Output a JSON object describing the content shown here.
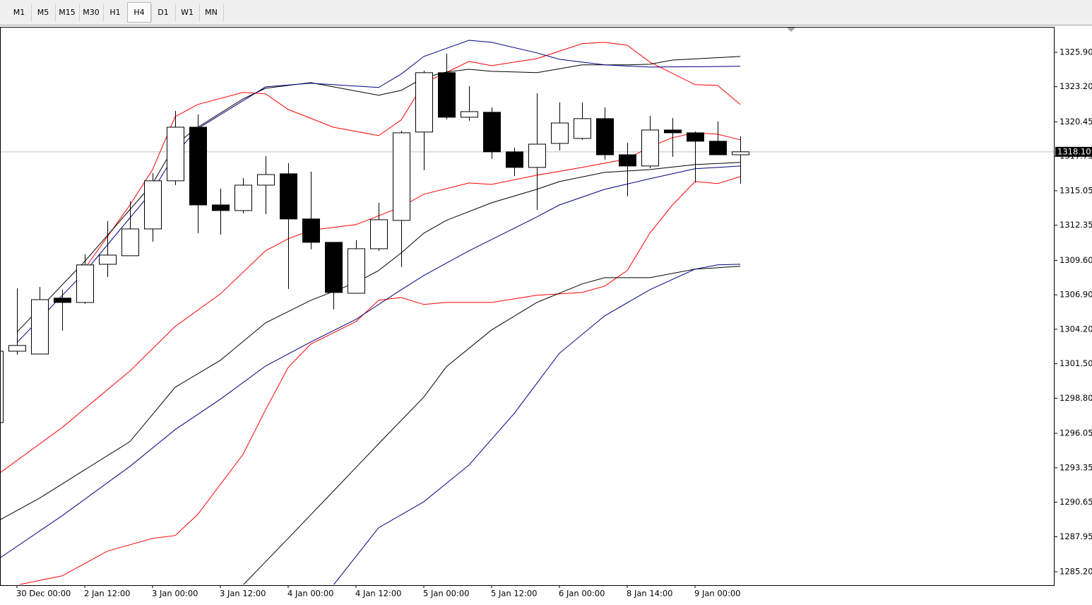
{
  "toolbar": {
    "timeframes": [
      "M1",
      "M5",
      "M15",
      "M30",
      "H1",
      "H4",
      "D1",
      "W1",
      "MN"
    ],
    "active": "H4"
  },
  "chart_data": {
    "type": "candlestick",
    "categories": [
      null,
      "30 Dec 00:00",
      null,
      null,
      "2 Jan 12:00",
      null,
      null,
      "3 Jan 00:00",
      null,
      null,
      "3 Jan 12:00",
      null,
      null,
      "4 Jan 00:00",
      null,
      null,
      "4 Jan 12:00",
      null,
      null,
      "5 Jan 00:00",
      null,
      null,
      "5 Jan 12:00",
      null,
      null,
      "6 Jan 00:00",
      null,
      null,
      "8 Jan 14:00",
      null,
      null,
      "9 Jan 00:00",
      null,
      null
    ],
    "open": [
      1296.89,
      1302.48,
      1302.26,
      1306.64,
      1306.3,
      1309.29,
      1309.96,
      1312.06,
      1315.83,
      1320.03,
      1313.94,
      1313.5,
      1315.49,
      1316.38,
      1312.84,
      1311.01,
      1307.02,
      1310.51,
      1312.73,
      1319.65,
      1324.3,
      1320.81,
      1321.2,
      1318.1,
      1316.88,
      1318.76,
      1319.15,
      1320.7,
      1317.87,
      1316.99,
      1319.81,
      1319.59,
      1318.93,
      1317.87
    ],
    "high": [
      1302.87,
      1307.41,
      1307.52,
      1307.3,
      1310.07,
      1312.67,
      1314.22,
      1316.43,
      1321.31,
      1321.03,
      1315.22,
      1316.05,
      1317.76,
      1317.21,
      1316.55,
      1311.01,
      1311.18,
      1314.11,
      1319.76,
      1324.46,
      1325.79,
      1323.24,
      1321.58,
      1318.43,
      1322.69,
      1321.97,
      1321.97,
      1321.58,
      1318.81,
      1320.92,
      1320.75,
      1319.7,
      1320.48,
      1319.31
    ],
    "low": [
      1296.89,
      1302.21,
      1302.26,
      1304.09,
      1306.19,
      1308.3,
      1309.96,
      1311.06,
      1315.49,
      1311.73,
      1311.62,
      1313.28,
      1313.22,
      1307.36,
      1310.46,
      1305.75,
      1307.02,
      1310.34,
      1309.07,
      1316.66,
      1320.64,
      1320.53,
      1317.54,
      1316.21,
      1313.56,
      1318.21,
      1319.04,
      1317.49,
      1314.61,
      1316.82,
      1317.71,
      1315.71,
      1317.87,
      1315.6
    ],
    "close": [
      1302.48,
      1302.93,
      1306.52,
      1306.3,
      1309.24,
      1310.01,
      1312.06,
      1315.83,
      1320.03,
      1313.94,
      1313.5,
      1315.49,
      1316.32,
      1312.84,
      1311.01,
      1307.08,
      1310.51,
      1312.78,
      1319.59,
      1324.3,
      1320.81,
      1321.25,
      1318.1,
      1316.88,
      1318.7,
      1320.36,
      1320.7,
      1317.87,
      1316.99,
      1319.81,
      1319.59,
      1318.93,
      1317.87,
      1318.1
    ],
    "up_color": "#ffffff",
    "down_color": "#000000",
    "outline_color": "#000000",
    "series": [
      {
        "color": "#ff0000",
        "x": [
          4,
          5,
          6,
          7,
          8,
          9,
          11,
          12,
          13,
          15,
          17,
          18,
          19,
          21,
          22,
          24,
          26,
          27,
          28,
          29,
          31,
          32,
          33
        ],
        "values": [
          1308.96,
          1311.45,
          1313.94,
          1316.71,
          1320.86,
          1321.81,
          1322.75,
          1322.64,
          1321.42,
          1320.03,
          1319.37,
          1320.59,
          1323.47,
          1325.18,
          1324.85,
          1325.4,
          1326.57,
          1326.68,
          1326.45,
          1325.13,
          1323.36,
          1323.3,
          1321.81
        ]
      },
      {
        "color": "#ff0000",
        "x": [
          0,
          3,
          6,
          8,
          10,
          12,
          13,
          14,
          16,
          18,
          19,
          21,
          22,
          24,
          26,
          28,
          29,
          30,
          31,
          32,
          33
        ],
        "values": [
          1292.63,
          1296.51,
          1300.94,
          1304.42,
          1306.97,
          1310.35,
          1311.29,
          1311.95,
          1312.4,
          1313.78,
          1314.78,
          1315.66,
          1315.55,
          1316.27,
          1316.88,
          1317.54,
          1318.49,
          1319.21,
          1319.59,
          1319.48,
          1319.04
        ]
      },
      {
        "color": "#ff0000",
        "x": [
          1,
          3,
          5,
          7,
          8,
          9,
          11,
          12,
          13,
          14,
          16,
          17,
          18,
          19,
          20,
          22,
          24,
          26,
          27,
          28,
          29,
          30,
          31,
          32,
          33
        ],
        "values": [
          1284.16,
          1284.88,
          1286.82,
          1287.82,
          1288.04,
          1289.7,
          1294.4,
          1297.89,
          1301.21,
          1303.04,
          1304.81,
          1306.47,
          1306.69,
          1306.14,
          1306.3,
          1306.3,
          1306.86,
          1307.08,
          1307.58,
          1308.8,
          1311.73,
          1313.94,
          1315.77,
          1315.61,
          1316.16
        ]
      },
      {
        "color": "#000000",
        "x": [
          1,
          4,
          7,
          8,
          9,
          11,
          12,
          14,
          17,
          18,
          19,
          20,
          21,
          22,
          24,
          26,
          28,
          29,
          30,
          33
        ],
        "values": [
          1303.98,
          1309.52,
          1315.61,
          1318.65,
          1320.03,
          1322.25,
          1323.08,
          1323.52,
          1322.53,
          1322.91,
          1323.91,
          1324.35,
          1324.57,
          1324.41,
          1324.3,
          1324.91,
          1324.91,
          1324.96,
          1325.29,
          1325.57
        ]
      },
      {
        "color": "#000080",
        "x": [
          1,
          4,
          7,
          8,
          9,
          12,
          14,
          17,
          18,
          19,
          21,
          22,
          24,
          25,
          27,
          29,
          33
        ],
        "values": [
          1303.15,
          1308.69,
          1315.05,
          1317.93,
          1319.92,
          1323.19,
          1323.47,
          1323.14,
          1324.19,
          1325.57,
          1326.84,
          1326.68,
          1325.85,
          1325.35,
          1324.91,
          1324.74,
          1324.8
        ]
      },
      {
        "color": "#000000",
        "x": [
          0,
          2,
          4,
          6,
          8,
          10,
          12,
          14,
          16,
          17,
          18,
          19,
          20,
          22,
          24,
          25,
          27,
          29,
          31,
          33
        ],
        "values": [
          1289.03,
          1290.97,
          1293.19,
          1295.4,
          1299.66,
          1301.77,
          1304.7,
          1306.47,
          1307.86,
          1308.8,
          1310.18,
          1311.73,
          1312.73,
          1314.11,
          1315.16,
          1315.77,
          1316.49,
          1316.71,
          1317.1,
          1317.27
        ]
      },
      {
        "color": "#000080",
        "x": [
          0,
          3,
          6,
          8,
          10,
          12,
          14,
          16,
          18,
          19,
          21,
          24,
          25,
          27,
          29,
          31,
          33
        ],
        "values": [
          1285.99,
          1289.59,
          1293.46,
          1296.34,
          1298.72,
          1301.32,
          1303.21,
          1304.98,
          1307.3,
          1308.41,
          1310.35,
          1313.0,
          1313.94,
          1315.16,
          1315.99,
          1316.77,
          1316.99
        ]
      },
      {
        "color": "#000000",
        "x": [
          11,
          13,
          15,
          17,
          19,
          20,
          22,
          24,
          26,
          27,
          29,
          31,
          33
        ],
        "values": [
          1284.16,
          1287.82,
          1291.52,
          1295.23,
          1298.89,
          1301.27,
          1304.15,
          1306.3,
          1307.75,
          1308.24,
          1308.24,
          1308.91,
          1309.13
        ]
      },
      {
        "color": "#000080",
        "x": [
          15,
          17,
          19,
          21,
          23,
          25,
          27,
          29,
          31,
          32,
          33
        ],
        "values": [
          1284.16,
          1288.65,
          1290.69,
          1293.57,
          1297.61,
          1302.32,
          1305.25,
          1307.3,
          1308.91,
          1309.24,
          1309.29
        ]
      }
    ],
    "ylim": [
      1284.15,
      1327.89
    ],
    "yticks": [
      {
        "value": 1325.9,
        "label": "1325.90"
      },
      {
        "value": 1323.2,
        "label": "1323.20"
      },
      {
        "value": 1320.45,
        "label": "1320.45"
      },
      {
        "value": 1317.75,
        "label": "1317.75"
      },
      {
        "value": 1315.05,
        "label": "1315.05"
      },
      {
        "value": 1312.35,
        "label": "1312.35"
      },
      {
        "value": 1309.6,
        "label": "1309.60"
      },
      {
        "value": 1306.9,
        "label": "1306.90"
      },
      {
        "value": 1304.2,
        "label": "1304.20"
      },
      {
        "value": 1301.5,
        "label": "1301.50"
      },
      {
        "value": 1298.8,
        "label": "1298.80"
      },
      {
        "value": 1296.05,
        "label": "1296.05"
      },
      {
        "value": 1293.35,
        "label": "1293.35"
      },
      {
        "value": 1290.65,
        "label": "1290.65"
      },
      {
        "value": 1287.95,
        "label": "1287.95"
      },
      {
        "value": 1285.2,
        "label": "1285.20"
      }
    ],
    "current_price": {
      "value": 1318.1,
      "label": "1318.10"
    },
    "grid": false
  }
}
